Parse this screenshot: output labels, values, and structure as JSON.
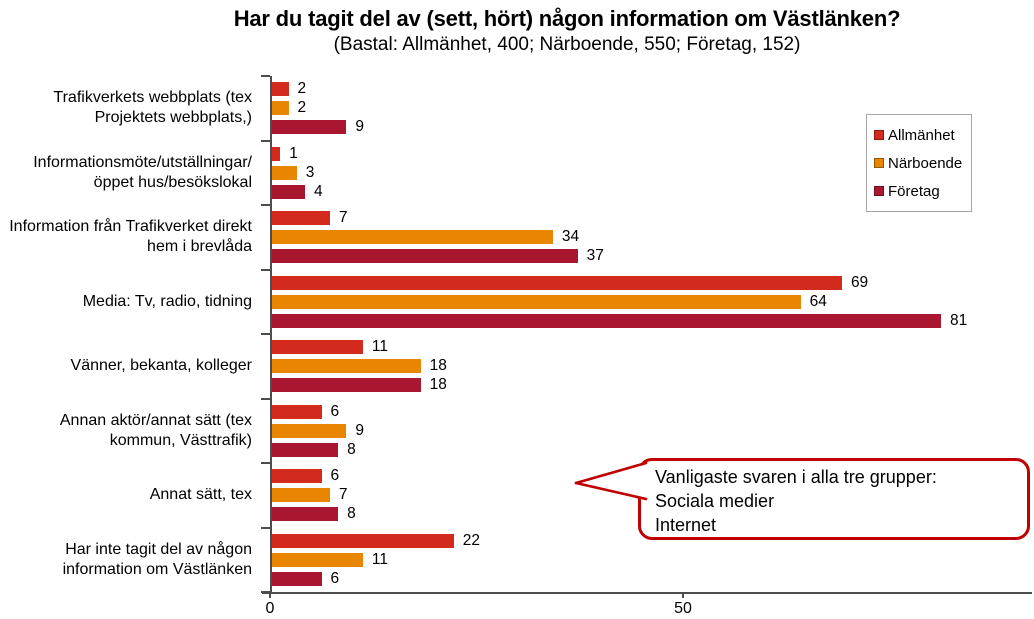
{
  "title": "Har du tagit del av (sett, hört) någon information om Västlänken?",
  "subtitle": "(Bastal: Allmänhet, 400; Närboende, 550; Företag, 152)",
  "chart_data": {
    "type": "bar",
    "orientation": "horizontal",
    "title": "Har du tagit del av (sett, hört) någon information om Västlänken?",
    "subtitle": "(Bastal: Allmänhet, 400; Närboende, 550; Företag, 152)",
    "xlabel": "",
    "ylabel": "",
    "xlim": [
      0,
      92
    ],
    "x_ticks": [
      0,
      50
    ],
    "grid": false,
    "legend_position": "top-right",
    "categories": [
      "Trafikverkets webbplats (tex Projektets webbplats,)",
      "Informationsmöte/utställningar/ öppet hus/besökslokal",
      "Information från Trafikverket direkt hem i brevlåda",
      "Media: Tv, radio, tidning",
      "Vänner, bekanta, kolleger",
      "Annan aktör/annat sätt (tex kommun, Västtrafik)",
      "Annat sätt, tex",
      "Har inte tagit del av någon information om Västlänken"
    ],
    "series": [
      {
        "name": "Allmänhet",
        "color": "#d4291d",
        "values": [
          2,
          1,
          7,
          69,
          11,
          6,
          6,
          22
        ]
      },
      {
        "name": "Närboende",
        "color": "#e88602",
        "values": [
          2,
          3,
          34,
          64,
          18,
          9,
          7,
          11
        ]
      },
      {
        "name": "Företag",
        "color": "#a8172f",
        "values": [
          9,
          4,
          37,
          81,
          18,
          8,
          8,
          6
        ]
      }
    ]
  },
  "axis": {
    "color": "#4d4d4d",
    "tick_labels": [
      "0",
      "50"
    ]
  },
  "callout": {
    "border_color": "#c00000",
    "lines": [
      "Vanligaste svaren i alla tre grupper:",
      "Sociala medier",
      "Internet"
    ]
  }
}
